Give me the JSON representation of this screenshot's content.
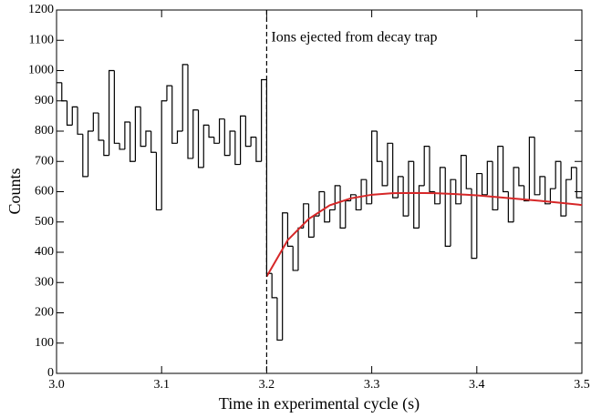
{
  "chart_data": {
    "type": "histogram",
    "xlabel": "Time in experimental cycle (s)",
    "ylabel": "Counts",
    "annotation": {
      "text": "Ions ejected from decay trap",
      "x": 3.2
    },
    "color": "#000000",
    "bins": [
      3.0,
      3.005,
      3.01,
      3.015,
      3.02,
      3.025,
      3.03,
      3.035,
      3.04,
      3.045,
      3.05,
      3.055,
      3.06,
      3.065,
      3.07,
      3.075,
      3.08,
      3.085,
      3.09,
      3.095,
      3.1,
      3.105,
      3.11,
      3.115,
      3.12,
      3.125,
      3.13,
      3.135,
      3.14,
      3.145,
      3.15,
      3.155,
      3.16,
      3.165,
      3.17,
      3.175,
      3.18,
      3.185,
      3.19,
      3.195,
      3.2,
      3.205,
      3.21,
      3.215,
      3.22,
      3.225,
      3.23,
      3.235,
      3.24,
      3.245,
      3.25,
      3.255,
      3.26,
      3.265,
      3.27,
      3.275,
      3.28,
      3.285,
      3.29,
      3.295,
      3.3,
      3.305,
      3.31,
      3.315,
      3.32,
      3.325,
      3.33,
      3.335,
      3.34,
      3.345,
      3.35,
      3.355,
      3.36,
      3.365,
      3.37,
      3.375,
      3.38,
      3.385,
      3.39,
      3.395,
      3.4,
      3.405,
      3.41,
      3.415,
      3.42,
      3.425,
      3.43,
      3.435,
      3.44,
      3.445,
      3.45,
      3.455,
      3.46,
      3.465,
      3.47,
      3.475,
      3.48,
      3.485,
      3.49,
      3.495,
      3.5
    ],
    "values": [
      960,
      900,
      820,
      880,
      790,
      650,
      800,
      860,
      770,
      720,
      1000,
      760,
      740,
      830,
      700,
      880,
      750,
      800,
      730,
      540,
      900,
      950,
      760,
      800,
      1020,
      710,
      870,
      680,
      820,
      780,
      760,
      840,
      720,
      800,
      690,
      850,
      750,
      780,
      700,
      970,
      330,
      250,
      110,
      530,
      420,
      340,
      480,
      560,
      450,
      520,
      600,
      500,
      540,
      620,
      480,
      570,
      590,
      540,
      640,
      560,
      800,
      700,
      620,
      760,
      580,
      650,
      520,
      700,
      480,
      620,
      750,
      600,
      560,
      680,
      420,
      640,
      560,
      720,
      610,
      380,
      660,
      590,
      700,
      540,
      750,
      600,
      500,
      680,
      620,
      570,
      780,
      590,
      650,
      560,
      610,
      700,
      520,
      640,
      680,
      580
    ],
    "fit": {
      "color": "#d62728",
      "x": [
        3.2,
        3.22,
        3.24,
        3.26,
        3.28,
        3.3,
        3.32,
        3.34,
        3.36,
        3.38,
        3.4,
        3.42,
        3.44,
        3.46,
        3.48,
        3.5
      ],
      "values": [
        320,
        440,
        510,
        555,
        578,
        590,
        595,
        596,
        595,
        592,
        588,
        582,
        576,
        570,
        563,
        556
      ]
    },
    "xlim": [
      3.0,
      3.5
    ],
    "xticks": [
      {
        "value": 3.0,
        "label": "3.0"
      },
      3.1,
      3.2,
      3.3,
      3.4,
      3.5
    ],
    "ylim": [
      0,
      1200
    ],
    "yticks": [
      0,
      100,
      200,
      300,
      400,
      500,
      600,
      700,
      800,
      900,
      1000,
      1100,
      1200
    ]
  }
}
